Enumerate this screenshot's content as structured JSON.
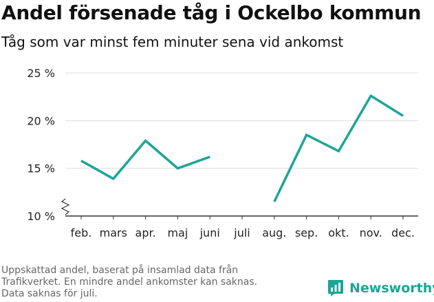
{
  "chart_data": {
    "type": "line",
    "title": "Andel försenade tåg i Ockelbo kommun",
    "subtitle": "Tåg som var minst fem minuter sena vid ankomst",
    "categories": [
      "feb.",
      "mars",
      "apr.",
      "maj",
      "juni",
      "juli",
      "aug.",
      "sep.",
      "okt.",
      "nov.",
      "dec."
    ],
    "series": [
      {
        "values": [
          15.8,
          13.9,
          17.9,
          15.0,
          16.2,
          null,
          11.5,
          18.5,
          16.8,
          22.6,
          20.5
        ]
      }
    ],
    "y_ticks": [
      10,
      15,
      20,
      25
    ],
    "y_tick_labels": [
      "10 %",
      "15 %",
      "20 %",
      "25 %"
    ],
    "ylim": [
      10,
      25
    ],
    "y_axis_break": true,
    "grid": true,
    "line_color": "#1aa596"
  },
  "footnote": [
    "Uppskattad andel, baserat på insamlad data från",
    "Trafikverket. En mindre andel ankomster kan saknas.",
    "Data saknas för juli."
  ],
  "brand": {
    "name": "Newsworthy",
    "icon": "newsworthy-logo-icon",
    "color": "#1aa596"
  }
}
